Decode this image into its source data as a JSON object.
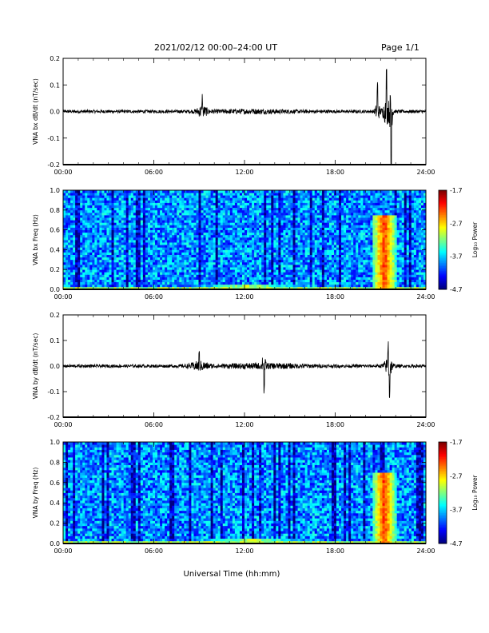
{
  "header": {
    "title": "2021/02/12  00:00–24:00 UT",
    "page": "Page 1/1"
  },
  "x_axis": {
    "ticks": [
      "00:00",
      "06:00",
      "12:00",
      "18:00",
      "24:00"
    ],
    "title": "Universal Time (hh:mm)"
  },
  "chart_data": [
    {
      "type": "line",
      "name": "bx_waveform",
      "ylabel": "VNA bx dB/dt (nT/sec)",
      "ylim": [
        -0.2,
        0.2
      ],
      "yticks": [
        "-0.2",
        "-0.1",
        "0.0",
        "0.1",
        "0.2"
      ],
      "xlim": [
        0,
        24
      ],
      "x_unit": "hours UT",
      "noise_amplitude": 0.006,
      "bursts": [
        {
          "t": 9.2,
          "width": 0.35,
          "amp": 0.05
        },
        {
          "t": 12.5,
          "width": 3.0,
          "amp": 0.012
        },
        {
          "t": 20.8,
          "width": 0.15,
          "amp": 0.09
        },
        {
          "t": 21.4,
          "width": 0.25,
          "amp": 0.13
        },
        {
          "t": 21.7,
          "width": 0.1,
          "amp": -0.2
        }
      ]
    },
    {
      "type": "heatmap",
      "name": "bx_spectrogram",
      "ylabel": "VNA bx Freq (Hz)",
      "ylim": [
        0.0,
        1.0
      ],
      "yticks": [
        "0.0",
        "0.2",
        "0.4",
        "0.6",
        "0.8",
        "1.0"
      ],
      "xlim": [
        0,
        24
      ],
      "colorbar": {
        "label": "Log₁₀ Power",
        "ticks": [
          "-1.7",
          "-2.7",
          "-3.7",
          "-4.7"
        ],
        "range": [
          -4.7,
          -1.7
        ]
      },
      "features": [
        {
          "t0": 20.5,
          "t1": 22.0,
          "f0": 0.0,
          "f1": 0.75,
          "level": -2.2
        },
        {
          "t0": 8.0,
          "t1": 16.5,
          "f0": 0.0,
          "f1": 0.05,
          "level": -3.0
        }
      ]
    },
    {
      "type": "line",
      "name": "by_waveform",
      "ylabel": "VNA by dB/dt (nT/sec)",
      "ylim": [
        -0.2,
        0.2
      ],
      "yticks": [
        "-0.2",
        "-0.1",
        "0.0",
        "0.1",
        "0.2"
      ],
      "xlim": [
        0,
        24
      ],
      "x_unit": "hours UT",
      "noise_amplitude": 0.006,
      "bursts": [
        {
          "t": 9.0,
          "width": 0.6,
          "amp": 0.04
        },
        {
          "t": 13.2,
          "width": 3.0,
          "amp": 0.02
        },
        {
          "t": 13.3,
          "width": 0.1,
          "amp": -0.08
        },
        {
          "t": 21.5,
          "width": 0.3,
          "amp": 0.07
        },
        {
          "t": 21.6,
          "width": 0.1,
          "amp": -0.1
        }
      ]
    },
    {
      "type": "heatmap",
      "name": "by_spectrogram",
      "ylabel": "VNA by Freq (Hz)",
      "ylim": [
        0.0,
        1.0
      ],
      "yticks": [
        "0.0",
        "0.2",
        "0.4",
        "0.6",
        "0.8",
        "1.0"
      ],
      "xlim": [
        0,
        24
      ],
      "colorbar": {
        "label": "Log₁₀ Power",
        "ticks": [
          "-1.7",
          "-2.7",
          "-3.7",
          "-4.7"
        ],
        "range": [
          -4.7,
          -1.7
        ]
      },
      "features": [
        {
          "t0": 20.5,
          "t1": 22.0,
          "f0": 0.0,
          "f1": 0.7,
          "level": -2.2
        },
        {
          "t0": 8.5,
          "t1": 16.5,
          "f0": 0.0,
          "f1": 0.05,
          "level": -3.0
        }
      ]
    }
  ]
}
